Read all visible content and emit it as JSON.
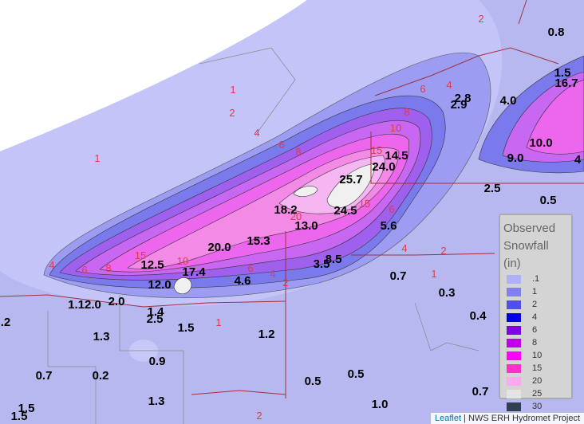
{
  "observations": [
    "0.8",
    "1.5",
    "16.7",
    "2.8",
    "2.9",
    "4.0",
    "10.0",
    "9.0",
    "4",
    "14.5",
    "24.0",
    "25.7",
    "24.5",
    "18.2",
    "13.0",
    "2.5",
    "0.5",
    "5.6",
    "20.0",
    "15.3",
    "12.5",
    "17.4",
    "12.0",
    "3.5",
    "8.5",
    "4.6",
    "0.7",
    "0.3",
    "0.4",
    "1.12.0",
    "2.0",
    "1.4",
    "2.5",
    "1.5",
    "1.2",
    "1.3",
    ".2",
    "0.9",
    "0.7",
    "0.2",
    "0.5",
    "0.5",
    "1.3",
    "1.0",
    "0.7",
    "1.5",
    "1.5"
  ],
  "contour_labels": [
    "2",
    "1",
    "2",
    "4",
    "6",
    "8",
    "1",
    "6",
    "4",
    "8",
    "10",
    "15",
    "15",
    "20",
    "6",
    "4",
    "2",
    "1",
    "4",
    "6",
    "8",
    "15",
    "10",
    "6",
    "4",
    "2",
    "1",
    "2"
  ],
  "legend": {
    "title": "Observed Snowfall (in)",
    "items": [
      {
        "label": ".1",
        "color": "#b0b0f8"
      },
      {
        "label": "1",
        "color": "#8080f0"
      },
      {
        "label": "2",
        "color": "#5050e8"
      },
      {
        "label": "4",
        "color": "#0000e0"
      },
      {
        "label": "6",
        "color": "#8000e0"
      },
      {
        "label": "8",
        "color": "#c000e8"
      },
      {
        "label": "10",
        "color": "#ff00ff"
      },
      {
        "label": "15",
        "color": "#ff30c8"
      },
      {
        "label": "20",
        "color": "#ffa8f0"
      },
      {
        "label": "25",
        "color": "#e4e4e4"
      },
      {
        "label": "30",
        "color": "#304050"
      }
    ]
  },
  "attribution": {
    "link": "Leaflet",
    "text": "| NWS ERH Hydromet Project"
  }
}
